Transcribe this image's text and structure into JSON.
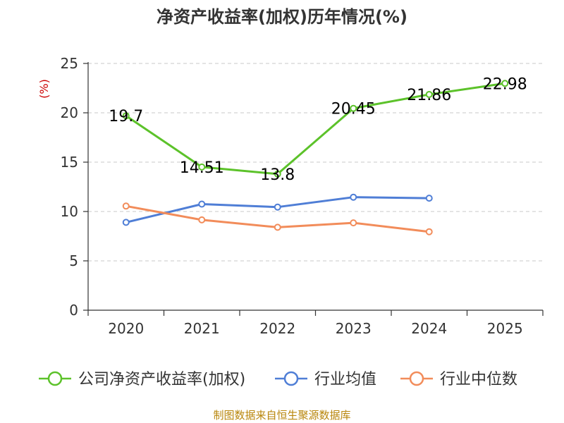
{
  "chart_data": {
    "type": "line",
    "title": "净资产收益率(加权)历年情况(%)",
    "ylabel": "(%)",
    "xlabel": "",
    "categories": [
      "2020",
      "2021",
      "2022",
      "2023",
      "2024",
      "2025"
    ],
    "ylim": [
      0,
      25
    ],
    "yticks": [
      0,
      5,
      10,
      15,
      20,
      25
    ],
    "grid": true,
    "legend_position": "bottom",
    "series": [
      {
        "name": "公司净资产收益率(加权)",
        "color": "#5cc22a",
        "values": [
          19.7,
          14.51,
          13.8,
          20.45,
          21.86,
          22.98
        ],
        "labels": [
          "19.7",
          "14.51",
          "13.8",
          "20.45",
          "21.86",
          "22.98"
        ]
      },
      {
        "name": "行业均值",
        "color": "#4f7ed6",
        "values": [
          8.9,
          10.75,
          10.45,
          11.45,
          11.35,
          null
        ]
      },
      {
        "name": "行业中位数",
        "color": "#f28c5a",
        "values": [
          10.55,
          9.15,
          8.4,
          8.85,
          7.95,
          null
        ]
      }
    ],
    "source": "制图数据来自恒生聚源数据库"
  }
}
